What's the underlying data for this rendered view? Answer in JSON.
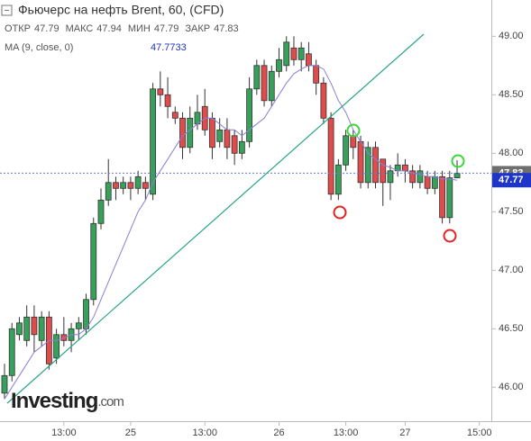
{
  "header": {
    "title": "Фьючерс на нефть Brent, 60, (CFD)",
    "ohlc": [
      {
        "label": "ОТКР",
        "value": 47.79
      },
      {
        "label": "МАКС",
        "value": 47.94
      },
      {
        "label": "МИН",
        "value": 47.79
      },
      {
        "label": "ЗАКР",
        "value": 47.83
      }
    ],
    "indicator": {
      "label": "MA (9, close, 0)",
      "value": 47.7733
    }
  },
  "logo": {
    "name": "Investing",
    "suffix": ".com"
  },
  "chart_data": {
    "type": "candlestick",
    "categories": [
      null,
      null,
      null,
      null,
      null,
      null,
      null,
      null,
      "13:00",
      null,
      null,
      null,
      null,
      null,
      null,
      null,
      null,
      "25",
      null,
      null,
      null,
      null,
      null,
      null,
      null,
      null,
      null,
      "13:00",
      null,
      null,
      null,
      null,
      null,
      null,
      null,
      null,
      null,
      "26",
      null,
      null,
      null,
      null,
      null,
      null,
      null,
      null,
      "13:00",
      null,
      null,
      null,
      null,
      null,
      null,
      null,
      "27",
      null,
      null,
      null,
      null,
      null,
      null,
      null,
      null,
      null,
      "15:00"
    ],
    "open": [
      45.95,
      46.1,
      46.45,
      46.4,
      46.6,
      46.4,
      46.6,
      46.25,
      46.45,
      46.4,
      46.5,
      46.5,
      46.75,
      47.4,
      47.6,
      47.75,
      47.7,
      47.75,
      47.7,
      47.75,
      47.65,
      48.55,
      48.5,
      48.35,
      48.3,
      48.05,
      48.25,
      48.4,
      48.3,
      48.1,
      48.2,
      48.15,
      48.0,
      48.1,
      48.55,
      48.75,
      48.45,
      48.7,
      48.75,
      48.9,
      48.8,
      48.85,
      48.75,
      48.6,
      48.3,
      47.65,
      47.9,
      48.15,
      48.1,
      47.75,
      48.05,
      47.95,
      47.75,
      47.85,
      47.9,
      47.85,
      47.75,
      47.8,
      47.7,
      47.8,
      47.45,
      47.79,
      null,
      null,
      null
    ],
    "high": [
      46.2,
      46.55,
      46.6,
      46.7,
      46.7,
      46.65,
      46.65,
      46.5,
      46.6,
      46.55,
      46.6,
      46.8,
      47.45,
      47.7,
      47.95,
      47.8,
      47.8,
      47.8,
      47.85,
      47.8,
      48.6,
      48.7,
      48.65,
      48.4,
      48.35,
      48.4,
      48.5,
      48.55,
      48.35,
      48.3,
      48.3,
      48.2,
      48.2,
      48.65,
      48.8,
      48.8,
      48.75,
      48.9,
      49.0,
      49.0,
      48.95,
      48.95,
      48.8,
      48.65,
      48.35,
      47.95,
      48.2,
      48.2,
      48.15,
      48.1,
      48.1,
      47.95,
      47.9,
      48.0,
      47.95,
      47.9,
      47.9,
      47.85,
      47.85,
      47.85,
      47.85,
      47.94,
      null,
      null,
      null
    ],
    "low": [
      45.9,
      46.05,
      46.4,
      46.35,
      46.3,
      46.35,
      46.15,
      46.2,
      46.35,
      46.3,
      46.4,
      46.45,
      46.7,
      47.35,
      47.55,
      47.6,
      47.65,
      47.6,
      47.65,
      47.6,
      47.6,
      48.4,
      48.3,
      48.25,
      47.95,
      48.0,
      48.2,
      48.15,
      47.95,
      48.05,
      47.95,
      47.9,
      47.95,
      48.05,
      48.5,
      48.4,
      48.4,
      48.65,
      48.7,
      48.75,
      48.7,
      48.7,
      48.5,
      48.25,
      47.6,
      47.6,
      47.85,
      47.95,
      47.7,
      47.7,
      47.7,
      47.55,
      47.6,
      47.8,
      47.75,
      47.7,
      47.7,
      47.65,
      47.65,
      47.4,
      47.4,
      47.79,
      null,
      null,
      null
    ],
    "close": [
      46.1,
      46.5,
      46.55,
      46.6,
      46.45,
      46.6,
      46.2,
      46.45,
      46.4,
      46.5,
      46.55,
      46.75,
      47.4,
      47.6,
      47.75,
      47.7,
      47.75,
      47.7,
      47.8,
      47.7,
      48.55,
      48.5,
      48.4,
      48.3,
      48.05,
      48.3,
      48.35,
      48.2,
      48.05,
      48.2,
      48.05,
      48.0,
      48.1,
      48.55,
      48.75,
      48.45,
      48.7,
      48.8,
      48.95,
      48.8,
      48.9,
      48.75,
      48.6,
      48.3,
      47.65,
      47.9,
      48.15,
      48.05,
      47.75,
      48.05,
      47.75,
      47.75,
      47.85,
      47.9,
      47.85,
      47.75,
      47.85,
      47.7,
      47.8,
      47.45,
      47.79,
      47.83,
      null,
      null,
      null
    ],
    "up_color": "#37a05a",
    "down_color": "#e04b4b",
    "ma": {
      "color": "#8a7fd6",
      "values": [
        45.9,
        46.0,
        46.1,
        46.2,
        46.3,
        46.35,
        46.4,
        46.4,
        46.42,
        46.45,
        46.45,
        46.5,
        46.6,
        46.75,
        46.9,
        47.05,
        47.2,
        47.35,
        47.5,
        47.6,
        47.75,
        47.85,
        47.95,
        48.05,
        48.15,
        48.2,
        48.25,
        48.3,
        48.3,
        48.25,
        48.2,
        48.2,
        48.15,
        48.2,
        48.25,
        48.3,
        48.4,
        48.5,
        48.6,
        48.68,
        48.72,
        48.75,
        48.75,
        48.72,
        48.6,
        48.45,
        48.35,
        48.2,
        48.1,
        48.0,
        47.95,
        47.9,
        47.88,
        47.85,
        47.85,
        47.83,
        47.82,
        47.8,
        47.8,
        47.78,
        47.78,
        47.77,
        null,
        null,
        null
      ]
    },
    "price_labels": [
      {
        "value": 47.83,
        "color": "#6f6f6f"
      },
      {
        "value": 47.77,
        "color": "#1f35c8"
      }
    ],
    "ylim": [
      45.71,
      49.31
    ],
    "yticks": [
      {
        "value": 46,
        "label": "46.00"
      },
      {
        "value": 46.5,
        "label": "46.50"
      },
      {
        "value": 47,
        "label": "47.00"
      },
      {
        "value": 47.5,
        "label": "47.50"
      },
      {
        "value": 48,
        "label": "48.00"
      },
      {
        "value": 48.5,
        "label": "48.50"
      },
      {
        "value": 49,
        "label": "49.00"
      }
    ]
  }
}
